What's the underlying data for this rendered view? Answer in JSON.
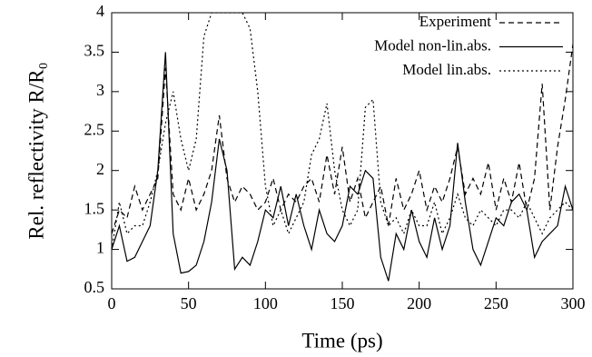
{
  "chart_data": {
    "type": "line",
    "xlabel": "Time (ps)",
    "ylabel": "Rel. reflectivity R/R₀",
    "x": [
      0,
      5,
      10,
      15,
      20,
      25,
      30,
      35,
      40,
      45,
      50,
      55,
      60,
      65,
      70,
      75,
      80,
      85,
      90,
      95,
      100,
      105,
      110,
      115,
      120,
      125,
      130,
      135,
      140,
      145,
      150,
      155,
      160,
      165,
      170,
      175,
      180,
      185,
      190,
      195,
      200,
      205,
      210,
      215,
      220,
      225,
      230,
      235,
      240,
      245,
      250,
      255,
      260,
      265,
      270,
      275,
      280,
      285,
      290,
      295,
      300
    ],
    "series": [
      {
        "name": "Experiment",
        "color": "#000000",
        "dash": "6,4",
        "values": [
          1.2,
          1.5,
          1.4,
          1.8,
          1.5,
          1.7,
          1.9,
          3.3,
          1.7,
          1.5,
          1.9,
          1.5,
          1.7,
          2.0,
          2.7,
          1.9,
          1.6,
          1.8,
          1.7,
          1.5,
          1.6,
          1.9,
          1.5,
          1.7,
          1.6,
          1.8,
          1.9,
          1.6,
          2.2,
          1.7,
          2.3,
          1.6,
          1.9,
          1.4,
          1.6,
          1.8,
          1.3,
          1.9,
          1.5,
          1.7,
          2.0,
          1.5,
          1.8,
          1.6,
          1.9,
          2.3,
          1.7,
          1.9,
          1.7,
          2.1,
          1.5,
          1.9,
          1.6,
          2.1,
          1.5,
          1.9,
          3.1,
          1.5,
          2.3,
          2.9,
          3.6
        ]
      },
      {
        "name": "Model non-lin.abs.",
        "color": "#000000",
        "dash": "none",
        "values": [
          1.0,
          1.3,
          0.85,
          0.9,
          1.1,
          1.3,
          2.0,
          3.5,
          1.2,
          0.7,
          0.72,
          0.8,
          1.1,
          1.6,
          2.4,
          2.0,
          0.75,
          0.9,
          0.8,
          1.1,
          1.5,
          1.4,
          1.8,
          1.3,
          1.7,
          1.3,
          1.0,
          1.5,
          1.2,
          1.1,
          1.3,
          1.8,
          1.7,
          2.0,
          1.9,
          0.9,
          0.6,
          1.2,
          1.0,
          1.5,
          1.1,
          0.9,
          1.4,
          1.0,
          1.3,
          2.35,
          1.6,
          1.0,
          0.8,
          1.1,
          1.4,
          1.3,
          1.6,
          1.7,
          1.5,
          0.9,
          1.1,
          1.2,
          1.3,
          1.8,
          1.5
        ]
      },
      {
        "name": "Model lin.abs.",
        "color": "#000000",
        "dash": "2,3",
        "values": [
          1.0,
          1.6,
          1.2,
          1.3,
          1.3,
          1.6,
          2.0,
          2.6,
          3.0,
          2.4,
          2.0,
          2.4,
          3.7,
          4.0,
          4.0,
          4.0,
          4.0,
          4.0,
          3.8,
          3.0,
          1.8,
          1.3,
          1.5,
          1.2,
          1.4,
          1.6,
          2.2,
          2.4,
          2.85,
          2.0,
          1.5,
          1.3,
          1.5,
          2.8,
          2.9,
          1.6,
          1.3,
          1.4,
          1.2,
          1.5,
          1.3,
          1.3,
          1.6,
          1.2,
          1.4,
          1.7,
          1.4,
          1.3,
          1.5,
          1.4,
          1.3,
          1.5,
          1.5,
          1.4,
          1.6,
          1.4,
          1.2,
          1.4,
          1.5,
          1.6,
          1.5
        ]
      }
    ],
    "xlim": [
      0,
      300
    ],
    "xticks": [
      0,
      50,
      100,
      150,
      200,
      250,
      300
    ],
    "ylim": [
      0.5,
      4
    ],
    "yticks": [
      0.5,
      1,
      1.5,
      2,
      2.5,
      3,
      3.5,
      4
    ],
    "legend": "top-right"
  }
}
